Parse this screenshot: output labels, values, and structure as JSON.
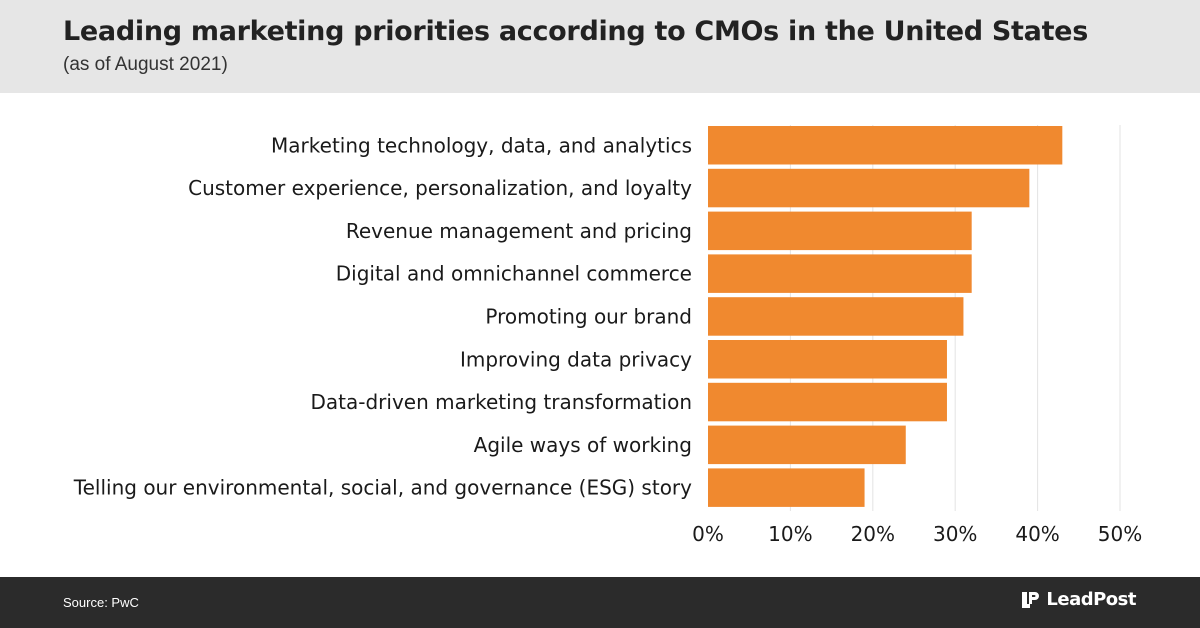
{
  "header": {
    "title": "Leading marketing priorities according to CMOs in the United States",
    "subtitle": "(as of August 2021)"
  },
  "footer": {
    "source": "Source: PwC",
    "brand": "LeadPost"
  },
  "colors": {
    "bar": "#f0892f",
    "header_bg": "#e6e6e6",
    "footer_bg": "#2b2b2b",
    "grid": "#e3e3e3"
  },
  "chart_data": {
    "type": "bar",
    "orientation": "horizontal",
    "categories": [
      "Marketing technology, data, and analytics",
      "Customer experience, personalization, and loyalty",
      "Revenue management and pricing",
      "Digital and omnichannel commerce",
      "Promoting our brand",
      "Improving data privacy",
      "Data-driven marketing transformation",
      "Agile ways of working",
      "Telling our environmental, social, and governance (ESG) story"
    ],
    "values": [
      43,
      39,
      32,
      32,
      31,
      29,
      29,
      24,
      19
    ],
    "unit": "%",
    "xlim": [
      0,
      50
    ],
    "ticks": [
      0,
      10,
      20,
      30,
      40,
      50
    ],
    "tick_labels": [
      "0%",
      "10%",
      "20%",
      "30%",
      "40%",
      "50%"
    ],
    "grid": true,
    "title": "Leading marketing priorities according to CMOs in the United States",
    "xlabel": "",
    "ylabel": ""
  }
}
